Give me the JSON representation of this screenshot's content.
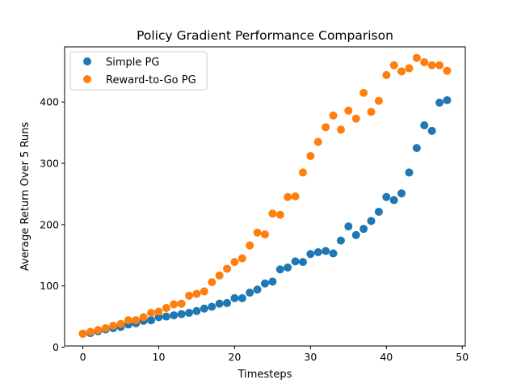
{
  "chart_data": {
    "type": "scatter",
    "title": "Policy Gradient Performance Comparison",
    "xlabel": "Timesteps",
    "ylabel": "Average Return Over 5 Runs",
    "xlim": [
      -2.4,
      50.4
    ],
    "ylim": [
      2,
      490
    ],
    "xticks": [
      0,
      10,
      20,
      30,
      40,
      50
    ],
    "yticks": [
      0,
      100,
      200,
      300,
      400
    ],
    "grid": false,
    "legend_position": "top-left",
    "series": [
      {
        "name": "Simple PG",
        "color": "#1f77b4",
        "x": [
          0,
          1,
          2,
          3,
          4,
          5,
          6,
          7,
          8,
          9,
          10,
          11,
          12,
          13,
          14,
          15,
          16,
          17,
          18,
          19,
          20,
          21,
          22,
          23,
          24,
          25,
          26,
          27,
          28,
          29,
          30,
          31,
          32,
          33,
          34,
          35,
          36,
          37,
          38,
          39,
          40,
          41,
          42,
          43,
          44,
          45,
          46,
          47,
          48
        ],
        "y": [
          22,
          23,
          26,
          29,
          31,
          33,
          37,
          39,
          43,
          44,
          49,
          50,
          52,
          54,
          56,
          59,
          63,
          66,
          71,
          72,
          80,
          80,
          89,
          94,
          104,
          107,
          127,
          130,
          140,
          139,
          152,
          155,
          157,
          153,
          174,
          197,
          183,
          193,
          206,
          221,
          245,
          240,
          251,
          285,
          325,
          362,
          353,
          399,
          403
        ]
      },
      {
        "name": "Reward-to-Go PG",
        "color": "#ff7f0e",
        "x": [
          0,
          1,
          2,
          3,
          4,
          5,
          6,
          7,
          8,
          9,
          10,
          11,
          12,
          13,
          14,
          15,
          16,
          17,
          18,
          19,
          20,
          21,
          22,
          23,
          24,
          25,
          26,
          27,
          28,
          29,
          30,
          31,
          32,
          33,
          34,
          35,
          36,
          37,
          38,
          39,
          40,
          41,
          42,
          43,
          44,
          45,
          46,
          47,
          48
        ],
        "y": [
          22,
          25,
          28,
          31,
          35,
          38,
          44,
          44,
          49,
          56,
          58,
          64,
          70,
          71,
          84,
          87,
          91,
          106,
          117,
          128,
          139,
          145,
          166,
          187,
          184,
          218,
          216,
          245,
          246,
          285,
          312,
          335,
          359,
          378,
          355,
          386,
          373,
          415,
          384,
          402,
          444,
          460,
          450,
          455,
          472,
          465,
          460,
          460,
          451
        ]
      }
    ]
  }
}
